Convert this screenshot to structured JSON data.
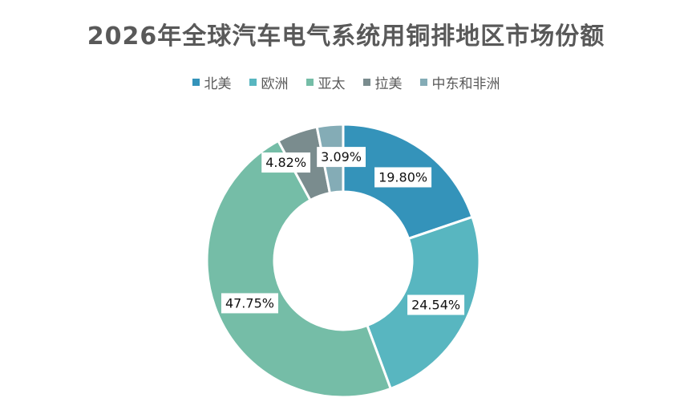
{
  "chart_data": {
    "type": "pie",
    "variant": "donut",
    "title": "2026年全球汽车电气系统用铜排地区市场份额",
    "series": [
      {
        "name": "北美",
        "value": 19.8,
        "label": "19.80%",
        "color": "#3493BA"
      },
      {
        "name": "欧洲",
        "value": 24.54,
        "label": "24.54%",
        "color": "#58B6C0"
      },
      {
        "name": "亚太",
        "value": 47.75,
        "label": "47.75%",
        "color": "#75BDA7"
      },
      {
        "name": "拉美",
        "value": 4.82,
        "label": "4.82%",
        "color": "#7A8C8E"
      },
      {
        "name": "中东和非洲",
        "value": 3.09,
        "label": "3.09%",
        "color": "#84ACB6"
      }
    ],
    "legend_position": "top",
    "start_angle": "12 o'clock, clockwise"
  }
}
